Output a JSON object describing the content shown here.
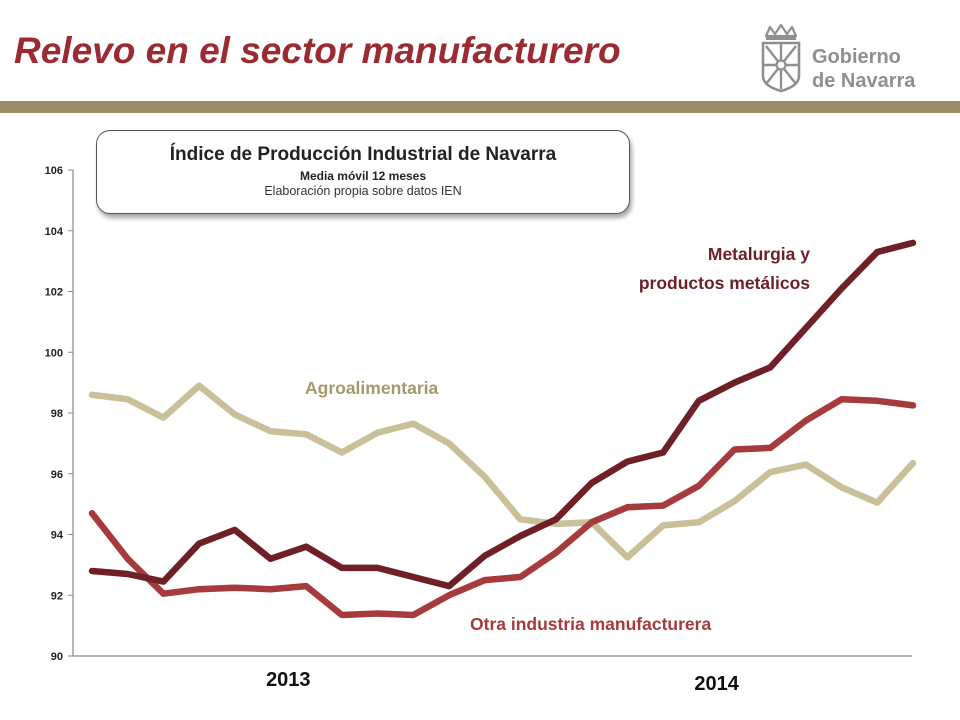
{
  "slide": {
    "title": "Relevo en el sector manufacturero",
    "logo": {
      "line1": "Gobierno",
      "line2": "de Navarra",
      "emblem": "navarra-coat-of-arms-icon"
    }
  },
  "colors": {
    "title": "#9b2a33",
    "divider": "#9b8e68",
    "metalurgia": "#6e2026",
    "otra": "#a63a3c",
    "agro": "#c9c09a",
    "agro_label": "#a39a6b"
  },
  "chart_data": {
    "type": "line",
    "title": "Índice de Producción Industrial de Navarra",
    "subtitle": "Media móvil 12 meses",
    "source": "Elaboración propia sobre datos IEN",
    "ylim": [
      90,
      106
    ],
    "yticks": [
      "90",
      "92",
      "94",
      "96",
      "98",
      "100",
      "102",
      "104",
      "106"
    ],
    "x_groups": [
      {
        "label": "2013",
        "start": 1,
        "end": 12
      },
      {
        "label": "2014",
        "start": 13,
        "end": 24
      }
    ],
    "x": [
      1,
      2,
      3,
      4,
      5,
      6,
      7,
      8,
      9,
      10,
      11,
      12,
      13,
      14,
      15,
      16,
      17,
      18,
      19,
      20,
      21,
      22,
      23,
      24
    ],
    "series": [
      {
        "key": "metalurgia",
        "name": "Metalurgia y productos metálicos",
        "label_lines": [
          "Metalurgia y",
          "productos metálicos"
        ],
        "values": [
          92.8,
          92.7,
          92.45,
          93.7,
          94.15,
          93.2,
          93.6,
          92.9,
          92.9,
          92.6,
          92.3,
          93.3,
          93.95,
          94.5,
          95.7,
          96.4,
          96.7,
          98.4,
          99.0,
          99.5,
          100.8,
          102.1,
          103.3,
          103.6
        ]
      },
      {
        "key": "otra",
        "name": "Otra industria manufacturera",
        "label_lines": [
          "Otra industria manufacturera"
        ],
        "values": [
          94.7,
          93.2,
          92.05,
          92.2,
          92.25,
          92.2,
          92.3,
          91.35,
          91.4,
          91.35,
          92.0,
          92.5,
          92.6,
          93.4,
          94.4,
          94.9,
          94.95,
          95.6,
          96.8,
          96.85,
          97.75,
          98.45,
          98.4,
          98.25
        ]
      },
      {
        "key": "agro",
        "name": "Agroalimentaria",
        "label_lines": [
          "Agroalimentaria"
        ],
        "values": [
          98.6,
          98.45,
          97.85,
          98.9,
          97.95,
          97.4,
          97.3,
          96.7,
          97.35,
          97.65,
          97.0,
          95.9,
          94.5,
          94.35,
          94.4,
          93.25,
          94.3,
          94.4,
          95.1,
          96.05,
          96.3,
          95.55,
          95.05,
          96.35
        ]
      }
    ]
  }
}
